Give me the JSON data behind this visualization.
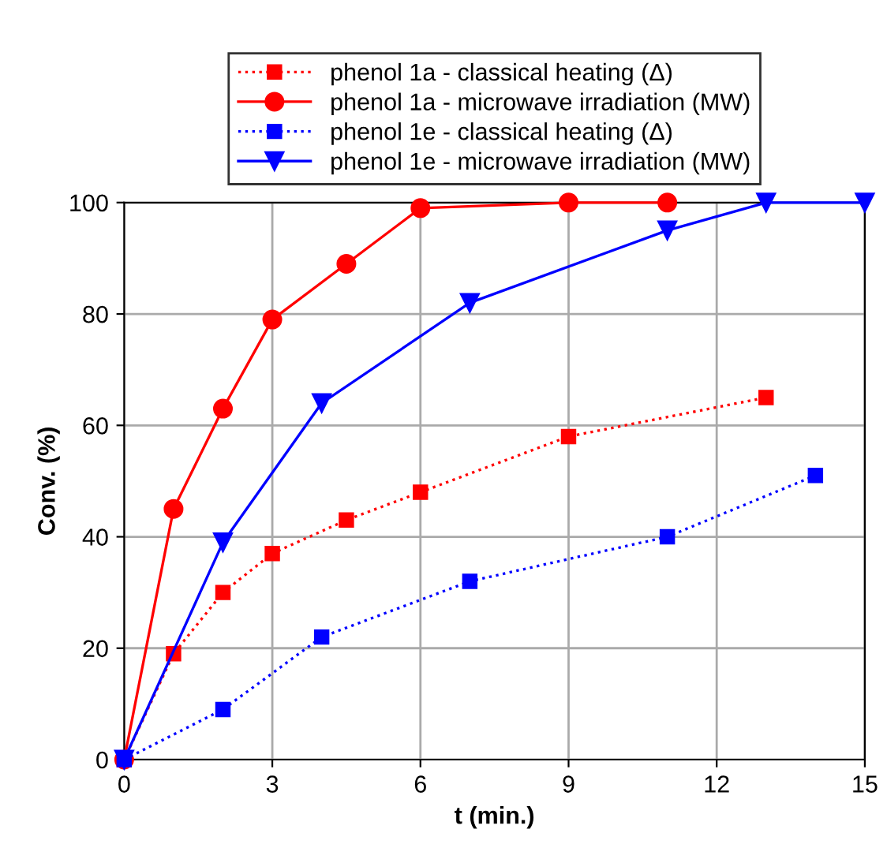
{
  "chart_data": {
    "type": "line",
    "xlabel": "t (min.)",
    "ylabel": "Conv. (%)",
    "xlim": [
      0,
      15
    ],
    "ylim": [
      0,
      100
    ],
    "xticks": [
      0,
      3,
      6,
      9,
      12,
      15
    ],
    "yticks": [
      0,
      20,
      40,
      60,
      80,
      100
    ],
    "grid": true,
    "legend": "top",
    "series": [
      {
        "name": "phenol 1a - classical heating (Δ)",
        "color": "#ff0000",
        "marker": "square",
        "line_style": "dotted",
        "x": [
          0,
          1,
          2,
          3,
          4.5,
          6,
          9,
          13
        ],
        "values": [
          0,
          19,
          30,
          37,
          43,
          48,
          58,
          65
        ]
      },
      {
        "name": "phenol 1a - microwave irradiation (MW)",
        "color": "#ff0000",
        "marker": "circle",
        "line_style": "solid",
        "x": [
          0,
          1,
          2,
          3,
          4.5,
          6,
          9,
          11
        ],
        "values": [
          0,
          45,
          63,
          79,
          89,
          99,
          100,
          100
        ]
      },
      {
        "name": "phenol 1e - classical heating (Δ)",
        "color": "#0000ff",
        "marker": "square",
        "line_style": "dotted",
        "x": [
          0,
          2,
          4,
          7,
          11,
          14
        ],
        "values": [
          0,
          9,
          22,
          32,
          40,
          51
        ]
      },
      {
        "name": "phenol 1e - microwave irradiation (MW)",
        "color": "#0000ff",
        "marker": "triangle",
        "line_style": "solid",
        "x": [
          0,
          2,
          4,
          7,
          11,
          13,
          15
        ],
        "values": [
          0,
          39,
          64,
          82,
          95,
          100,
          100
        ]
      }
    ]
  }
}
